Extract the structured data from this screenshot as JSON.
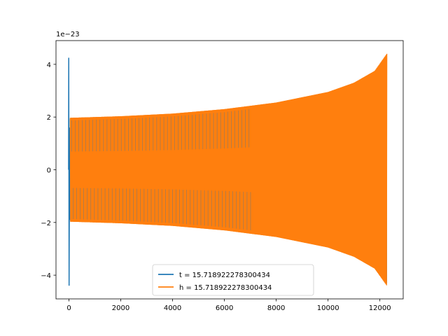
{
  "chart_data": {
    "type": "line",
    "title": "",
    "xlabel": "",
    "ylabel": "",
    "xlim": [
      -500,
      12900
    ],
    "ylim": [
      -4.9,
      4.9
    ],
    "y_offset_text": "1e−23",
    "x_ticks": [
      0,
      2000,
      4000,
      6000,
      8000,
      10000,
      12000
    ],
    "x_tick_labels": [
      "0",
      "2000",
      "4000",
      "6000",
      "8000",
      "10000",
      "12000"
    ],
    "y_ticks": [
      -4,
      -2,
      0,
      2,
      4
    ],
    "y_tick_labels": [
      "−4",
      "−2",
      "0",
      "2",
      "4"
    ],
    "grid": false,
    "legend_position": "lower-center",
    "series": [
      {
        "name": "t = 15.718922278300434",
        "color": "#1f77b4",
        "description_points": {
          "spike_x": 0,
          "spike_max": 4.25,
          "spike_min": -4.4,
          "envelope_x": [
            50,
            2000,
            4000,
            6000,
            8000,
            10000,
            11000,
            11800,
            12270
          ],
          "envelope_amp": [
            1.97,
            2.03,
            2.13,
            2.3,
            2.55,
            2.95,
            3.3,
            3.75,
            4.4
          ]
        }
      },
      {
        "name": "h = 15.718922278300434",
        "color": "#ff7f0e",
        "description_points": {
          "envelope_x": [
            50,
            2000,
            4000,
            6000,
            8000,
            10000,
            11000,
            11800,
            12270
          ],
          "envelope_amp": [
            1.97,
            2.03,
            2.13,
            2.3,
            2.55,
            2.95,
            3.3,
            3.75,
            4.4
          ]
        }
      }
    ]
  }
}
